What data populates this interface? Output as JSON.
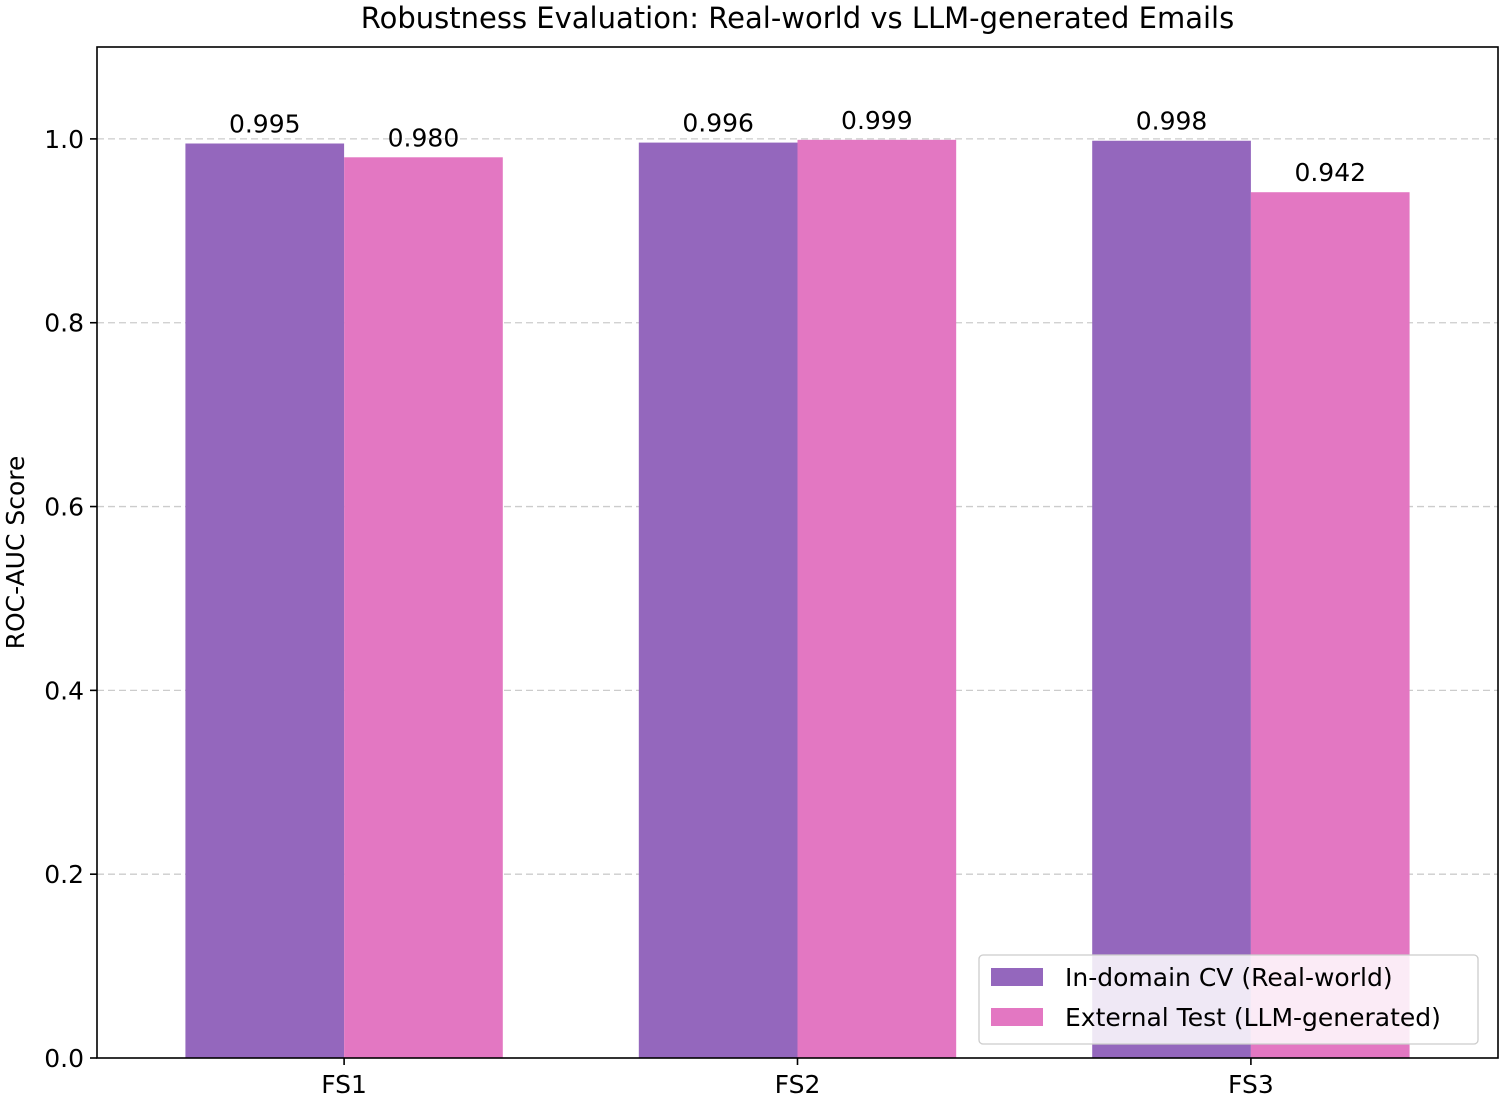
{
  "chart_data": {
    "type": "bar",
    "title": "Robustness Evaluation: Real-world vs LLM-generated Emails",
    "xlabel": "",
    "ylabel": "ROC-AUC Score",
    "categories": [
      "FS1",
      "FS2",
      "FS3"
    ],
    "series": [
      {
        "name": "In-domain CV (Real-world)",
        "values": [
          0.995,
          0.996,
          0.998
        ],
        "labels": [
          "0.995",
          "0.996",
          "0.998"
        ],
        "color": "#9467bd"
      },
      {
        "name": "External Test (LLM-generated)",
        "values": [
          0.98,
          0.999,
          0.942
        ],
        "labels": [
          "0.980",
          "0.999",
          "0.942"
        ],
        "color": "#e377c2"
      }
    ],
    "ylim": [
      0,
      1.1
    ],
    "yticks": [
      0.0,
      0.2,
      0.4,
      0.6,
      0.8,
      1.0
    ],
    "ytick_labels": [
      "0.0",
      "0.2",
      "0.4",
      "0.6",
      "0.8",
      "1.0"
    ],
    "grid": "y-dashed",
    "legend_position": "lower-right"
  }
}
